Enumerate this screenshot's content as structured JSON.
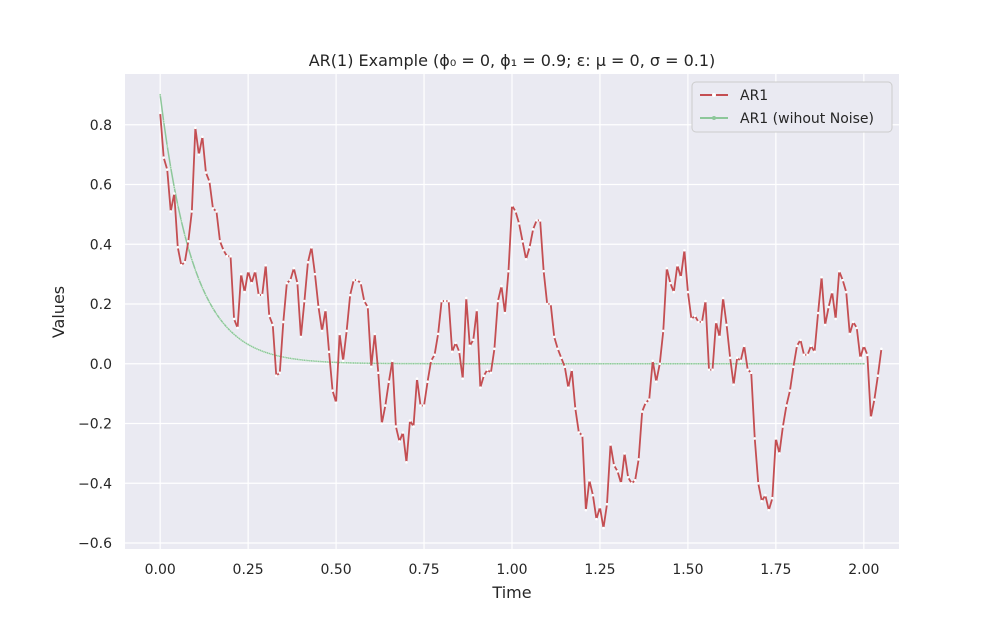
{
  "chart_data": {
    "type": "line",
    "title": "AR(1) Example (ϕ₀ = 0, ϕ₁ = 0.9; ε: μ = 0, σ = 0.1)",
    "xlabel": "Time",
    "ylabel": "Values",
    "xlim": [
      -0.1,
      2.1
    ],
    "ylim": [
      -0.62,
      0.97
    ],
    "xticks": [
      "0.00",
      "0.25",
      "0.50",
      "0.75",
      "1.00",
      "1.25",
      "1.50",
      "1.75",
      "2.00"
    ],
    "yticks": [
      "−0.6",
      "−0.4",
      "−0.2",
      "0.0",
      "0.2",
      "0.4",
      "0.6",
      "0.8"
    ],
    "grid": true,
    "legend_position": "top-right",
    "colors": {
      "background": "#eaeaf2",
      "grid": "#ffffff",
      "ar1": "#c44e52",
      "no_noise": "#8dc79a"
    },
    "series": [
      {
        "name": "AR1",
        "x_start": 0.0,
        "x_step": 0.01,
        "values": [
          0.84,
          0.69,
          0.65,
          0.51,
          0.57,
          0.39,
          0.33,
          0.34,
          0.41,
          0.51,
          0.79,
          0.7,
          0.76,
          0.64,
          0.61,
          0.52,
          0.51,
          0.41,
          0.38,
          0.36,
          0.36,
          0.15,
          0.12,
          0.3,
          0.24,
          0.31,
          0.27,
          0.31,
          0.23,
          0.23,
          0.33,
          0.16,
          0.13,
          -0.04,
          -0.03,
          0.14,
          0.27,
          0.28,
          0.32,
          0.27,
          0.09,
          0.21,
          0.34,
          0.39,
          0.3,
          0.19,
          0.11,
          0.18,
          0.04,
          -0.09,
          -0.13,
          0.1,
          0.01,
          0.11,
          0.23,
          0.28,
          0.28,
          0.27,
          0.21,
          0.19,
          -0.01,
          0.1,
          -0.03,
          -0.2,
          -0.14,
          -0.06,
          0.01,
          -0.21,
          -0.26,
          -0.23,
          -0.33,
          -0.19,
          -0.21,
          -0.05,
          -0.14,
          -0.14,
          -0.06,
          0.01,
          0.03,
          0.1,
          0.21,
          0.21,
          0.21,
          0.04,
          0.07,
          0.04,
          -0.05,
          0.22,
          0.06,
          0.08,
          0.18,
          -0.08,
          -0.04,
          -0.02,
          -0.03,
          0.05,
          0.21,
          0.26,
          0.17,
          0.31,
          0.53,
          0.51,
          0.47,
          0.41,
          0.35,
          0.39,
          0.45,
          0.48,
          0.48,
          0.31,
          0.2,
          0.2,
          0.09,
          0.05,
          0.02,
          -0.01,
          -0.08,
          -0.02,
          -0.15,
          -0.23,
          -0.24,
          -0.49,
          -0.39,
          -0.44,
          -0.52,
          -0.48,
          -0.55,
          -0.47,
          -0.27,
          -0.34,
          -0.36,
          -0.4,
          -0.3,
          -0.38,
          -0.4,
          -0.39,
          -0.32,
          -0.16,
          -0.13,
          -0.12,
          0.01,
          -0.06,
          0.0,
          0.11,
          0.32,
          0.27,
          0.24,
          0.33,
          0.29,
          0.38,
          0.24,
          0.15,
          0.16,
          0.14,
          0.14,
          0.21,
          -0.02,
          -0.02,
          0.14,
          0.09,
          0.22,
          0.13,
          0.02,
          -0.07,
          0.02,
          0.01,
          0.06,
          -0.02,
          -0.03,
          -0.25,
          -0.4,
          -0.46,
          -0.44,
          -0.49,
          -0.45,
          -0.25,
          -0.3,
          -0.21,
          -0.14,
          -0.09,
          -0.01,
          0.06,
          0.08,
          0.03,
          0.03,
          0.06,
          0.04,
          0.17,
          0.29,
          0.13,
          0.19,
          0.24,
          0.15,
          0.31,
          0.28,
          0.24,
          0.1,
          0.14,
          0.12,
          0.02,
          0.06,
          0.03,
          -0.18,
          -0.12,
          -0.04,
          0.05
        ]
      },
      {
        "name": "AR1 (wihout Noise)",
        "x_start": 0.0,
        "x_step": 0.01,
        "initial_value": 0.9,
        "ratio": 0.9,
        "count": 201
      }
    ]
  }
}
